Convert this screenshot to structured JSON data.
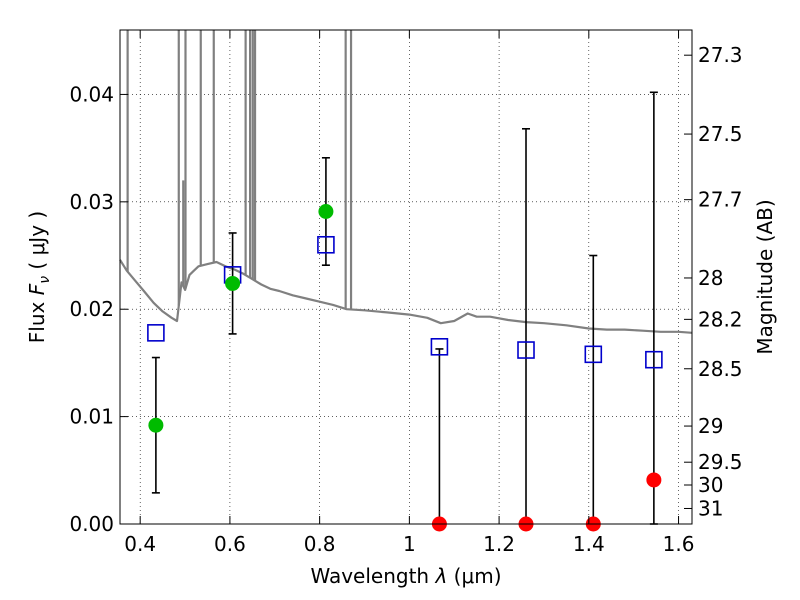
{
  "chart_data": {
    "type": "scatter",
    "xlabel": "Wavelength",
    "xlabel_symbol": "λ",
    "xlabel_unit": "μm",
    "ylabel": "Flux",
    "ylabel_symbol": "F",
    "ylabel_symbol_sub": "ν",
    "ylabel_unit": "μJy",
    "y2label": "Magnitude (AB)",
    "xlim": [
      0.355,
      1.63
    ],
    "ylim": [
      0.0,
      0.046
    ],
    "grid": true,
    "x_ticks": [
      {
        "value": 0.4,
        "label": "0.4"
      },
      {
        "value": 0.6,
        "label": "0.6"
      },
      {
        "value": 0.8,
        "label": "0.8"
      },
      {
        "value": 1.0,
        "label": "1"
      },
      {
        "value": 1.2,
        "label": "1.2"
      },
      {
        "value": 1.4,
        "label": "1.4"
      },
      {
        "value": 1.6,
        "label": "1.6"
      }
    ],
    "y_ticks": [
      {
        "value": 0.0,
        "label": "0.00"
      },
      {
        "value": 0.01,
        "label": "0.01"
      },
      {
        "value": 0.02,
        "label": "0.02"
      },
      {
        "value": 0.03,
        "label": "0.03"
      },
      {
        "value": 0.04,
        "label": "0.04"
      }
    ],
    "y2_ticks": [
      {
        "mag": 27.3,
        "label": "27.3"
      },
      {
        "mag": 27.5,
        "label": "27.5"
      },
      {
        "mag": 27.7,
        "label": "27.7"
      },
      {
        "mag": 28.0,
        "label": "28"
      },
      {
        "mag": 28.2,
        "label": "28.2"
      },
      {
        "mag": 28.5,
        "label": "28.5"
      },
      {
        "mag": 29.0,
        "label": "29"
      },
      {
        "mag": 29.5,
        "label": "29.5"
      },
      {
        "mag": 30.0,
        "label": "30"
      },
      {
        "mag": 31.0,
        "label": "31"
      }
    ],
    "series": [
      {
        "marker": "open-square",
        "color": "#0000cc",
        "points": [
          {
            "x": 0.435,
            "y": 0.0178
          },
          {
            "x": 0.606,
            "y": 0.0232
          },
          {
            "x": 0.814,
            "y": 0.026
          },
          {
            "x": 1.067,
            "y": 0.0165
          },
          {
            "x": 1.26,
            "y": 0.0162
          },
          {
            "x": 1.41,
            "y": 0.0158
          },
          {
            "x": 1.545,
            "y": 0.0153
          }
        ]
      },
      {
        "marker": "filled-circle",
        "color": "#00bb00",
        "points": [
          {
            "x": 0.435,
            "y": 0.0092,
            "err_low": 0.0063,
            "err_high": 0.0063
          },
          {
            "x": 0.606,
            "y": 0.0224,
            "err_low": 0.0047,
            "err_high": 0.0047
          },
          {
            "x": 0.814,
            "y": 0.0291,
            "err_low": 0.005,
            "err_high": 0.005
          }
        ]
      },
      {
        "marker": "filled-circle",
        "color": "#ff0000",
        "points": [
          {
            "x": 1.067,
            "y": 0.0,
            "err_low": 0.0,
            "err_high": 0.0163
          },
          {
            "x": 1.26,
            "y": 0.0,
            "err_low": 0.0,
            "err_high": 0.0368
          },
          {
            "x": 1.41,
            "y": 0.0,
            "err_low": 0.0,
            "err_high": 0.025
          },
          {
            "x": 1.545,
            "y": 0.0041,
            "err_low": 0.0041,
            "err_high": 0.0361
          }
        ]
      },
      {
        "marker": "line",
        "color": "#808080",
        "points": [
          {
            "x": 0.355,
            "y": 0.0246
          },
          {
            "x": 0.37,
            "y": 0.0236
          },
          {
            "x": 0.39,
            "y": 0.0226
          },
          {
            "x": 0.41,
            "y": 0.0216
          },
          {
            "x": 0.43,
            "y": 0.0206
          },
          {
            "x": 0.45,
            "y": 0.0198
          },
          {
            "x": 0.47,
            "y": 0.0192
          },
          {
            "x": 0.482,
            "y": 0.0189
          },
          {
            "x": 0.492,
            "y": 0.0225
          },
          {
            "x": 0.5,
            "y": 0.0218
          },
          {
            "x": 0.51,
            "y": 0.0232
          },
          {
            "x": 0.52,
            "y": 0.0236
          },
          {
            "x": 0.53,
            "y": 0.024
          },
          {
            "x": 0.55,
            "y": 0.0242
          },
          {
            "x": 0.57,
            "y": 0.0244
          },
          {
            "x": 0.59,
            "y": 0.024
          },
          {
            "x": 0.61,
            "y": 0.0237
          },
          {
            "x": 0.63,
            "y": 0.0233
          },
          {
            "x": 0.65,
            "y": 0.0228
          },
          {
            "x": 0.67,
            "y": 0.0223
          },
          {
            "x": 0.69,
            "y": 0.0219
          },
          {
            "x": 0.71,
            "y": 0.0217
          },
          {
            "x": 0.74,
            "y": 0.0213
          },
          {
            "x": 0.77,
            "y": 0.021
          },
          {
            "x": 0.8,
            "y": 0.0207
          },
          {
            "x": 0.83,
            "y": 0.0204
          },
          {
            "x": 0.86,
            "y": 0.02
          },
          {
            "x": 0.9,
            "y": 0.0199
          },
          {
            "x": 0.95,
            "y": 0.0197
          },
          {
            "x": 1.0,
            "y": 0.0195
          },
          {
            "x": 1.04,
            "y": 0.0192
          },
          {
            "x": 1.07,
            "y": 0.0187
          },
          {
            "x": 1.1,
            "y": 0.0189
          },
          {
            "x": 1.13,
            "y": 0.0196
          },
          {
            "x": 1.15,
            "y": 0.0193
          },
          {
            "x": 1.18,
            "y": 0.0193
          },
          {
            "x": 1.22,
            "y": 0.019
          },
          {
            "x": 1.26,
            "y": 0.0188
          },
          {
            "x": 1.3,
            "y": 0.0187
          },
          {
            "x": 1.35,
            "y": 0.0185
          },
          {
            "x": 1.4,
            "y": 0.0182
          },
          {
            "x": 1.44,
            "y": 0.0181
          },
          {
            "x": 1.48,
            "y": 0.0181
          },
          {
            "x": 1.52,
            "y": 0.018
          },
          {
            "x": 1.56,
            "y": 0.0179
          },
          {
            "x": 1.6,
            "y": 0.0179
          },
          {
            "x": 1.63,
            "y": 0.0178
          }
        ]
      },
      {
        "marker": "emission-lines",
        "color": "#808080",
        "points": [
          {
            "x": 0.372,
            "y": 0.046
          },
          {
            "x": 0.486,
            "y": 0.046
          },
          {
            "x": 0.496,
            "y": 0.032
          },
          {
            "x": 0.501,
            "y": 0.046
          },
          {
            "x": 0.535,
            "y": 0.046
          },
          {
            "x": 0.564,
            "y": 0.046
          },
          {
            "x": 0.635,
            "y": 0.046
          },
          {
            "x": 0.645,
            "y": 0.046
          },
          {
            "x": 0.651,
            "y": 0.046
          },
          {
            "x": 0.656,
            "y": 0.046
          },
          {
            "x": 0.858,
            "y": 0.046
          },
          {
            "x": 0.87,
            "y": 0.046
          }
        ]
      }
    ]
  }
}
